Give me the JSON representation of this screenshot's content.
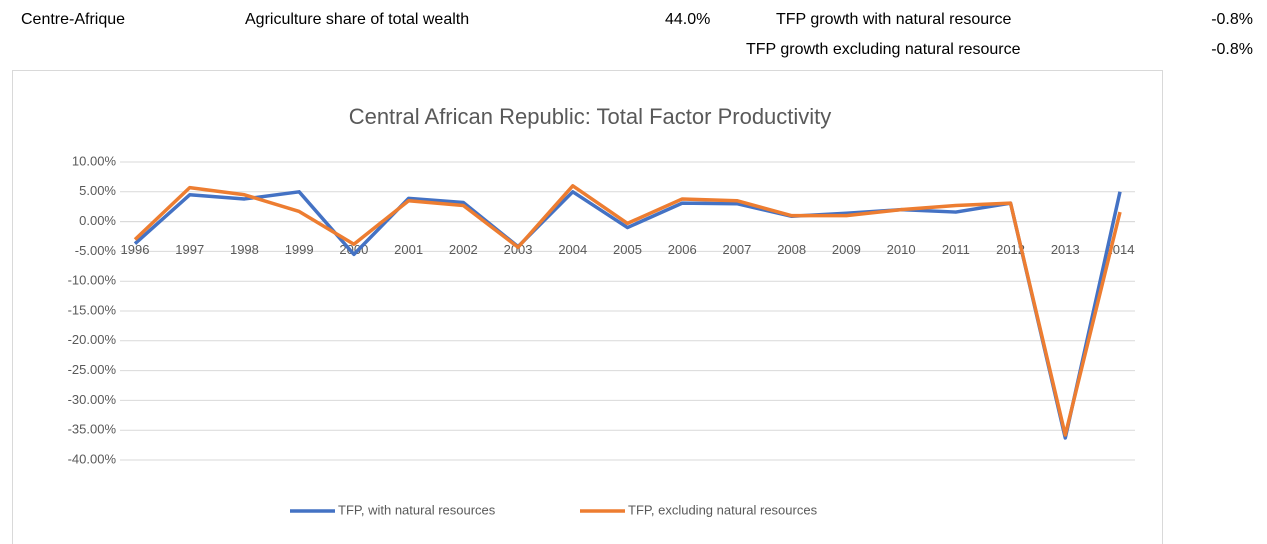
{
  "sheet": {
    "rows": [
      [
        "Centre-Afrique",
        "Agriculture share of total wealth",
        "44.0%",
        "TFP growth with natural resource",
        "-0.8%"
      ],
      [
        "TFP growth excluding natural resource",
        "-0.8%"
      ]
    ]
  },
  "chart_data": {
    "type": "line",
    "title": "Central African Republic: Total Factor Productivity",
    "categories": [
      "1996",
      "1997",
      "1998",
      "1999",
      "2000",
      "2001",
      "2002",
      "2003",
      "2004",
      "2005",
      "2006",
      "2007",
      "2008",
      "2009",
      "2010",
      "2011",
      "2012",
      "2013",
      "2014"
    ],
    "series": [
      {
        "name": "TFP, with natural resources",
        "color": "#4472c4",
        "values": [
          -3.7,
          4.5,
          3.8,
          5.0,
          -5.5,
          3.9,
          3.2,
          -4.2,
          5.0,
          -1.0,
          3.1,
          3.0,
          0.9,
          1.4,
          2.0,
          1.6,
          3.1,
          -36.3,
          5.0
        ]
      },
      {
        "name": "TFP, excluding natural resources",
        "color": "#ed7d31",
        "values": [
          -3.0,
          5.7,
          4.5,
          1.7,
          -3.8,
          3.5,
          2.7,
          -4.3,
          6.0,
          -0.3,
          3.8,
          3.5,
          1.0,
          1.0,
          2.0,
          2.7,
          3.1,
          -35.8,
          1.6
        ]
      }
    ],
    "ylim": [
      -40,
      10
    ],
    "yticks": [
      {
        "value": 10,
        "label": "10.00%"
      },
      {
        "value": 5,
        "label": "5.00%"
      },
      {
        "value": 0,
        "label": "0.00%"
      },
      {
        "value": -5,
        "label": "-5.00%"
      },
      {
        "value": -10,
        "label": "-10.00%"
      },
      {
        "value": -15,
        "label": "-15.00%"
      },
      {
        "value": -20,
        "label": "-20.00%"
      },
      {
        "value": -25,
        "label": "-25.00%"
      },
      {
        "value": -30,
        "label": "-30.00%"
      },
      {
        "value": -35,
        "label": "-35.00%"
      },
      {
        "value": -40,
        "label": "-40.00%"
      }
    ],
    "grid": true
  }
}
